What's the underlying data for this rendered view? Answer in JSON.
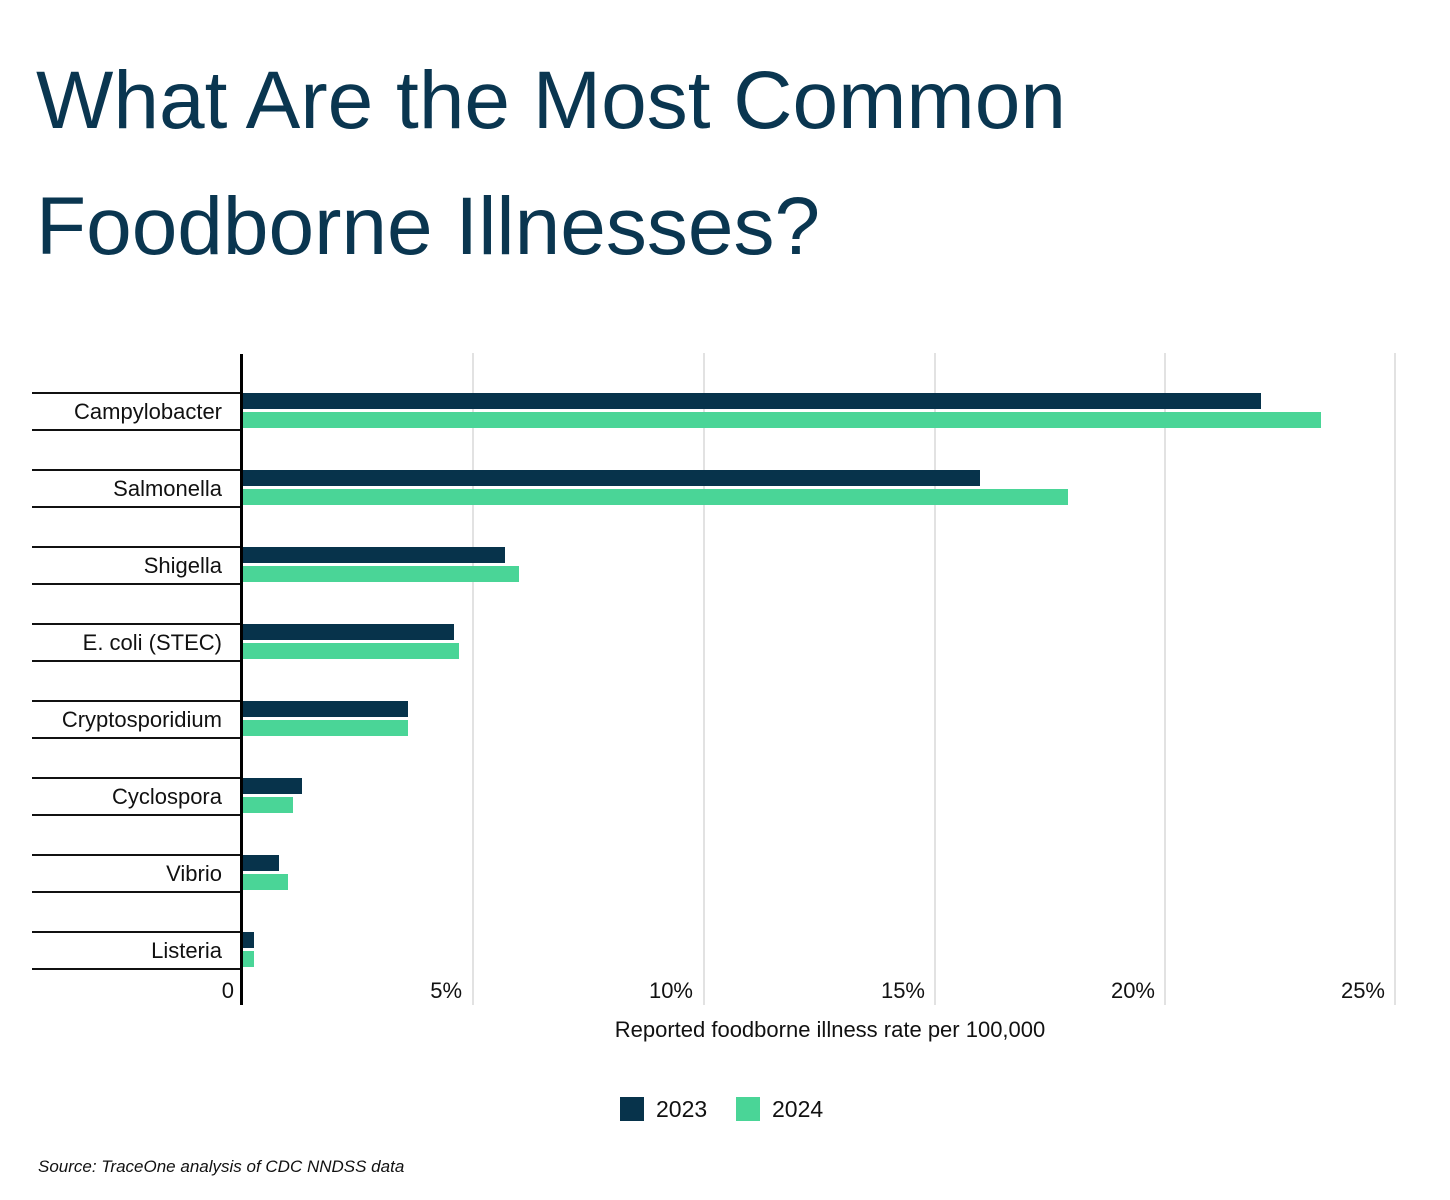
{
  "title": {
    "line1": "What Are the Most Common",
    "line2": "Foodborne Illnesses?"
  },
  "axis": {
    "xlabel": "Reported foodborne illness rate per 100,000",
    "ticks": [
      "0",
      "5%",
      "10%",
      "15%",
      "20%",
      "25%"
    ]
  },
  "legend": {
    "items": [
      {
        "label": "2023",
        "color": "#07334b"
      },
      {
        "label": "2024",
        "color": "#4ad597"
      }
    ]
  },
  "source": "Source: TraceOne analysis of CDC NNDSS data",
  "chart_data": {
    "type": "bar",
    "orientation": "horizontal",
    "title": "What Are the Most Common Foodborne Illnesses?",
    "xlabel": "Reported foodborne illness rate per 100,000",
    "ylabel": "",
    "xlim": [
      0,
      25
    ],
    "x_ticks": [
      "0",
      "5%",
      "10%",
      "15%",
      "20%",
      "25%"
    ],
    "grid": true,
    "legend_position": "bottom",
    "categories": [
      "Campylobacter",
      "Salmonella",
      "Shigella",
      "E. coli (STEC)",
      "Cryptosporidium",
      "Cyclospora",
      "Vibrio",
      "Listeria"
    ],
    "series": [
      {
        "name": "2023",
        "color": "#07334b",
        "values": [
          22.1,
          16.0,
          5.7,
          4.6,
          3.6,
          1.3,
          0.8,
          0.25
        ]
      },
      {
        "name": "2024",
        "color": "#4ad597",
        "values": [
          23.4,
          17.9,
          6.0,
          4.7,
          3.6,
          1.1,
          1.0,
          0.25
        ]
      }
    ],
    "source": "Source: TraceOne analysis of CDC NNDSS data"
  }
}
